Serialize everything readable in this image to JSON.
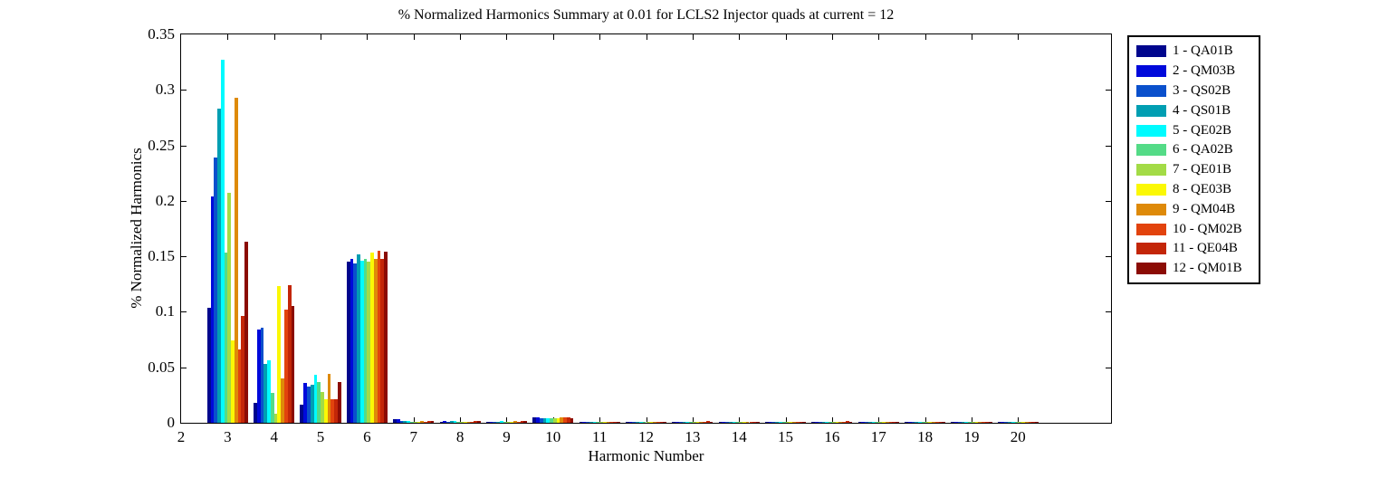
{
  "chart_data": {
    "type": "bar",
    "title": "% Normalized Harmonics Summary at 0.01 for LCLS2 Injector quads at current = 12",
    "xlabel": "Harmonic Number",
    "ylabel": "% Normalized Harmonics",
    "categories": [
      3,
      4,
      5,
      6,
      7,
      8,
      9,
      10,
      11,
      12,
      13,
      14,
      15,
      16,
      17,
      18,
      19,
      20
    ],
    "xlim": [
      2,
      22
    ],
    "ylim": [
      0,
      0.35
    ],
    "xticks": [
      "2",
      "3",
      "4",
      "5",
      "6",
      "7",
      "8",
      "9",
      "10",
      "11",
      "12",
      "13",
      "14",
      "15",
      "16",
      "17",
      "18",
      "19",
      "20"
    ],
    "yticks": [
      "0",
      "0.05",
      "0.1",
      "0.15",
      "0.2",
      "0.25",
      "0.3",
      "0.35"
    ],
    "grid": false,
    "legend_position": "outside-right",
    "bar_group_width": 0.88,
    "series": [
      {
        "index": 1,
        "name": "QA01B",
        "legend_label": "1 - QA01B",
        "color": "#00068D",
        "values": [
          0.104,
          0.018,
          0.016,
          0.145,
          0.003,
          0.001,
          0.001,
          0.005,
          0.001,
          0.001,
          0.001,
          0.001,
          0.001,
          0.001,
          0.001,
          0.001,
          0.001,
          0.001
        ]
      },
      {
        "index": 2,
        "name": "QM03B",
        "legend_label": "2 - QM03B",
        "color": "#0009DB",
        "values": [
          0.204,
          0.084,
          0.036,
          0.148,
          0.003,
          0.002,
          0.001,
          0.005,
          0.001,
          0.001,
          0.001,
          0.001,
          0.001,
          0.001,
          0.001,
          0.001,
          0.001,
          0.001
        ]
      },
      {
        "index": 3,
        "name": "QS02B",
        "legend_label": "3 - QS02B",
        "color": "#0A50CC",
        "values": [
          0.239,
          0.086,
          0.033,
          0.144,
          0.002,
          0.001,
          0.001,
          0.004,
          0.001,
          0.001,
          0.001,
          0.001,
          0.001,
          0.001,
          0.001,
          0.001,
          0.001,
          0.001
        ]
      },
      {
        "index": 4,
        "name": "QS01B",
        "legend_label": "4 - QS01B",
        "color": "#009EB2",
        "values": [
          0.283,
          0.053,
          0.034,
          0.152,
          0.002,
          0.002,
          0.001,
          0.004,
          0.001,
          0.001,
          0.001,
          0.001,
          0.001,
          0.001,
          0.001,
          0.001,
          0.001,
          0.001
        ]
      },
      {
        "index": 5,
        "name": "QE02B",
        "legend_label": "5 - QE02B",
        "color": "#00FBFF",
        "values": [
          0.327,
          0.056,
          0.043,
          0.146,
          0.002,
          0.002,
          0.002,
          0.004,
          0.001,
          0.001,
          0.001,
          0.001,
          0.001,
          0.001,
          0.001,
          0.001,
          0.001,
          0.001
        ]
      },
      {
        "index": 6,
        "name": "QA02B",
        "legend_label": "6 - QA02B",
        "color": "#54DB87",
        "values": [
          0.153,
          0.027,
          0.037,
          0.148,
          0.001,
          0.001,
          0.001,
          0.004,
          0.001,
          0.001,
          0.001,
          0.001,
          0.001,
          0.001,
          0.001,
          0.001,
          0.001,
          0.001
        ]
      },
      {
        "index": 7,
        "name": "QE01B",
        "legend_label": "7 - QE01B",
        "color": "#A3DB46",
        "values": [
          0.207,
          0.008,
          0.028,
          0.145,
          0.001,
          0.001,
          0.001,
          0.004,
          0.001,
          0.001,
          0.001,
          0.001,
          0.001,
          0.001,
          0.001,
          0.001,
          0.001,
          0.001
        ]
      },
      {
        "index": 8,
        "name": "QE03B",
        "legend_label": "8 - QE03B",
        "color": "#FBF805",
        "values": [
          0.074,
          0.123,
          0.021,
          0.153,
          0.001,
          0.001,
          0.001,
          0.004,
          0.001,
          0.001,
          0.001,
          0.001,
          0.001,
          0.001,
          0.001,
          0.001,
          0.001,
          0.001
        ]
      },
      {
        "index": 9,
        "name": "QM04B",
        "legend_label": "9 - QM04B",
        "color": "#DE8A09",
        "values": [
          0.293,
          0.04,
          0.044,
          0.148,
          0.002,
          0.001,
          0.002,
          0.005,
          0.001,
          0.001,
          0.001,
          0.001,
          0.001,
          0.001,
          0.001,
          0.001,
          0.001,
          0.001
        ]
      },
      {
        "index": 10,
        "name": "QM02B",
        "legend_label": "10 - QM02B",
        "color": "#E2430D",
        "values": [
          0.066,
          0.102,
          0.021,
          0.155,
          0.001,
          0.001,
          0.001,
          0.005,
          0.001,
          0.001,
          0.001,
          0.001,
          0.001,
          0.001,
          0.001,
          0.001,
          0.001,
          0.001
        ]
      },
      {
        "index": 11,
        "name": "QE04B",
        "legend_label": "11 - QE04B",
        "color": "#C32608",
        "values": [
          0.096,
          0.124,
          0.021,
          0.148,
          0.002,
          0.002,
          0.002,
          0.005,
          0.001,
          0.001,
          0.002,
          0.001,
          0.001,
          0.002,
          0.001,
          0.001,
          0.001,
          0.001
        ]
      },
      {
        "index": 12,
        "name": "QM01B",
        "legend_label": "12 - QM01B",
        "color": "#8B0C04",
        "values": [
          0.163,
          0.105,
          0.037,
          0.154,
          0.002,
          0.002,
          0.002,
          0.004,
          0.001,
          0.001,
          0.001,
          0.001,
          0.001,
          0.001,
          0.001,
          0.001,
          0.001,
          0.001
        ]
      }
    ]
  }
}
